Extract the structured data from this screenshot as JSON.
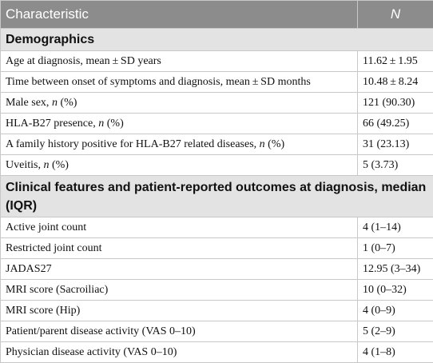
{
  "table": {
    "header": [
      "Characteristic",
      "N"
    ],
    "sections": [
      {
        "title": "Demographics",
        "rows": [
          {
            "label_parts": [
              "Age at diagnosis, mean ± SD years"
            ],
            "value": "11.62 ± 1.95"
          },
          {
            "label_parts": [
              "Time between onset of symptoms and diagnosis, mean ± SD months"
            ],
            "value": "10.48 ± 8.24"
          },
          {
            "label_parts": [
              "Male sex, ",
              "n",
              " (%)"
            ],
            "value": "121 (90.30)"
          },
          {
            "label_parts": [
              "HLA-B27 presence, ",
              "n",
              " (%)"
            ],
            "value": "66 (49.25)"
          },
          {
            "label_parts": [
              "A family history positive for HLA-B27 related diseases, ",
              "n",
              " (%)"
            ],
            "value": "31 (23.13)"
          },
          {
            "label_parts": [
              "Uveitis, ",
              "n",
              " (%)"
            ],
            "value": "5 (3.73)"
          }
        ]
      },
      {
        "title": "Clinical features and patient-reported outcomes at diagnosis, median (IQR)",
        "rows": [
          {
            "label_parts": [
              "Active joint count"
            ],
            "value": "4 (1–14)"
          },
          {
            "label_parts": [
              "Restricted joint count"
            ],
            "value": "1 (0–7)"
          },
          {
            "label_parts": [
              "JADAS27"
            ],
            "value": "12.95 (3–34)"
          },
          {
            "label_parts": [
              "MRI score (Sacroiliac)"
            ],
            "value": "10 (0–32)"
          },
          {
            "label_parts": [
              "MRI score (Hip)"
            ],
            "value": "4 (0–9)"
          },
          {
            "label_parts": [
              "Patient/parent disease activity (VAS 0–10)"
            ],
            "value": "5 (2–9)"
          },
          {
            "label_parts": [
              "Physician disease activity (VAS 0–10)"
            ],
            "value": "4 (1–8)"
          }
        ]
      }
    ]
  }
}
